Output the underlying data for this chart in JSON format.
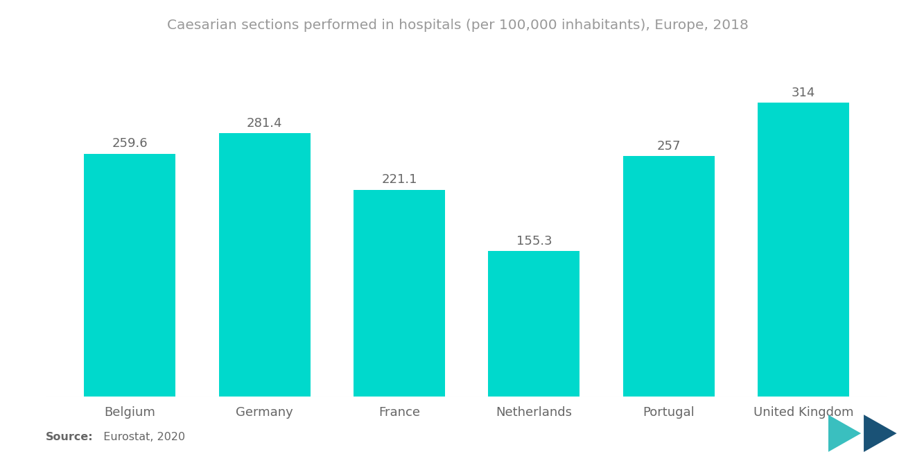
{
  "title": "Caesarian sections performed in hospitals (per 100,000 inhabitants), Europe, 2018",
  "categories": [
    "Belgium",
    "Germany",
    "France",
    "Netherlands",
    "Portugal",
    "United Kingdom"
  ],
  "values": [
    259.6,
    281.4,
    221.1,
    155.3,
    257,
    314
  ],
  "bar_color": "#00D9CC",
  "value_labels": [
    "259.6",
    "281.4",
    "221.1",
    "155.3",
    "257",
    "314"
  ],
  "source_bold": "Source:",
  "source_rest": "  Eurostat, 2020",
  "background_color": "#ffffff",
  "title_color": "#999999",
  "label_color": "#666666",
  "value_label_color": "#666666",
  "ylim": [
    0,
    360
  ],
  "bar_width": 0.68,
  "title_fontsize": 14.5,
  "label_fontsize": 13,
  "value_fontsize": 13,
  "source_fontsize": 11.5
}
